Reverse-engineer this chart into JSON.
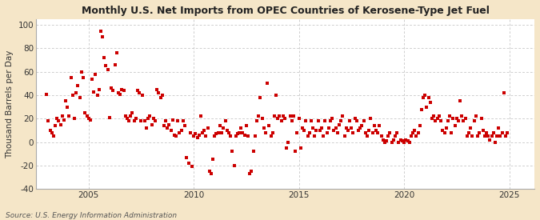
{
  "title": "Monthly U.S. Net Imports from OPEC Countries of Kerosene-Type Jet Fuel",
  "ylabel": "Thousand Barrels per Day",
  "source": "Source: U.S. Energy Information Administration",
  "fig_background_color": "#f5e6c8",
  "plot_background_color": "#ffffff",
  "dot_color": "#cc0000",
  "dot_size": 6,
  "ylim": [
    -40,
    105
  ],
  "yticks": [
    -40,
    -20,
    0,
    20,
    40,
    60,
    80,
    100
  ],
  "xlim_start": 2002.5,
  "xlim_end": 2026.2,
  "xticks": [
    2005,
    2010,
    2015,
    2020,
    2025
  ],
  "grid_color": "#bbbbbb",
  "data": [
    [
      2003.0,
      41
    ],
    [
      2003.08,
      18
    ],
    [
      2003.17,
      10
    ],
    [
      2003.25,
      8
    ],
    [
      2003.33,
      5
    ],
    [
      2003.42,
      14
    ],
    [
      2003.5,
      20
    ],
    [
      2003.58,
      18
    ],
    [
      2003.67,
      15
    ],
    [
      2003.75,
      22
    ],
    [
      2003.83,
      19
    ],
    [
      2003.92,
      35
    ],
    [
      2004.0,
      30
    ],
    [
      2004.08,
      22
    ],
    [
      2004.17,
      55
    ],
    [
      2004.25,
      40
    ],
    [
      2004.33,
      20
    ],
    [
      2004.42,
      42
    ],
    [
      2004.5,
      48
    ],
    [
      2004.58,
      38
    ],
    [
      2004.67,
      60
    ],
    [
      2004.75,
      55
    ],
    [
      2004.83,
      25
    ],
    [
      2004.92,
      22
    ],
    [
      2005.0,
      20
    ],
    [
      2005.08,
      19
    ],
    [
      2005.17,
      54
    ],
    [
      2005.25,
      43
    ],
    [
      2005.33,
      58
    ],
    [
      2005.42,
      40
    ],
    [
      2005.5,
      45
    ],
    [
      2005.58,
      95
    ],
    [
      2005.67,
      90
    ],
    [
      2005.75,
      72
    ],
    [
      2005.83,
      65
    ],
    [
      2005.92,
      62
    ],
    [
      2006.0,
      21
    ],
    [
      2006.08,
      46
    ],
    [
      2006.17,
      44
    ],
    [
      2006.25,
      66
    ],
    [
      2006.33,
      76
    ],
    [
      2006.42,
      42
    ],
    [
      2006.5,
      41
    ],
    [
      2006.58,
      45
    ],
    [
      2006.67,
      44
    ],
    [
      2006.75,
      22
    ],
    [
      2006.83,
      20
    ],
    [
      2006.92,
      18
    ],
    [
      2007.0,
      22
    ],
    [
      2007.08,
      25
    ],
    [
      2007.17,
      18
    ],
    [
      2007.25,
      20
    ],
    [
      2007.33,
      44
    ],
    [
      2007.42,
      42
    ],
    [
      2007.5,
      18
    ],
    [
      2007.58,
      40
    ],
    [
      2007.67,
      18
    ],
    [
      2007.75,
      12
    ],
    [
      2007.83,
      20
    ],
    [
      2007.92,
      22
    ],
    [
      2008.0,
      15
    ],
    [
      2008.08,
      20
    ],
    [
      2008.17,
      18
    ],
    [
      2008.25,
      45
    ],
    [
      2008.33,
      42
    ],
    [
      2008.42,
      38
    ],
    [
      2008.5,
      40
    ],
    [
      2008.58,
      14
    ],
    [
      2008.67,
      18
    ],
    [
      2008.75,
      12
    ],
    [
      2008.83,
      15
    ],
    [
      2008.92,
      10
    ],
    [
      2009.0,
      19
    ],
    [
      2009.08,
      6
    ],
    [
      2009.17,
      5
    ],
    [
      2009.25,
      18
    ],
    [
      2009.33,
      8
    ],
    [
      2009.42,
      10
    ],
    [
      2009.5,
      18
    ],
    [
      2009.58,
      14
    ],
    [
      2009.67,
      -13
    ],
    [
      2009.75,
      -18
    ],
    [
      2009.83,
      8
    ],
    [
      2009.92,
      -21
    ],
    [
      2010.0,
      5
    ],
    [
      2010.08,
      7
    ],
    [
      2010.17,
      4
    ],
    [
      2010.25,
      6
    ],
    [
      2010.33,
      22
    ],
    [
      2010.42,
      8
    ],
    [
      2010.5,
      10
    ],
    [
      2010.58,
      5
    ],
    [
      2010.67,
      12
    ],
    [
      2010.75,
      -25
    ],
    [
      2010.83,
      -27
    ],
    [
      2010.92,
      -15
    ],
    [
      2011.0,
      5
    ],
    [
      2011.08,
      7
    ],
    [
      2011.17,
      8
    ],
    [
      2011.25,
      14
    ],
    [
      2011.33,
      8
    ],
    [
      2011.42,
      12
    ],
    [
      2011.5,
      18
    ],
    [
      2011.58,
      10
    ],
    [
      2011.67,
      8
    ],
    [
      2011.75,
      5
    ],
    [
      2011.83,
      -8
    ],
    [
      2011.92,
      -20
    ],
    [
      2012.0,
      5
    ],
    [
      2012.08,
      7
    ],
    [
      2012.17,
      8
    ],
    [
      2012.25,
      12
    ],
    [
      2012.33,
      8
    ],
    [
      2012.42,
      6
    ],
    [
      2012.5,
      14
    ],
    [
      2012.58,
      5
    ],
    [
      2012.67,
      -27
    ],
    [
      2012.75,
      -25
    ],
    [
      2012.83,
      -8
    ],
    [
      2012.92,
      5
    ],
    [
      2013.0,
      18
    ],
    [
      2013.08,
      22
    ],
    [
      2013.17,
      38
    ],
    [
      2013.25,
      20
    ],
    [
      2013.33,
      12
    ],
    [
      2013.42,
      8
    ],
    [
      2013.5,
      50
    ],
    [
      2013.58,
      14
    ],
    [
      2013.67,
      5
    ],
    [
      2013.75,
      8
    ],
    [
      2013.83,
      22
    ],
    [
      2013.92,
      40
    ],
    [
      2014.0,
      20
    ],
    [
      2014.08,
      22
    ],
    [
      2014.17,
      18
    ],
    [
      2014.25,
      22
    ],
    [
      2014.33,
      20
    ],
    [
      2014.42,
      -5
    ],
    [
      2014.5,
      0
    ],
    [
      2014.58,
      22
    ],
    [
      2014.67,
      18
    ],
    [
      2014.75,
      22
    ],
    [
      2014.83,
      -8
    ],
    [
      2014.92,
      8
    ],
    [
      2015.0,
      20
    ],
    [
      2015.08,
      -5
    ],
    [
      2015.17,
      12
    ],
    [
      2015.25,
      10
    ],
    [
      2015.33,
      18
    ],
    [
      2015.42,
      5
    ],
    [
      2015.5,
      8
    ],
    [
      2015.58,
      18
    ],
    [
      2015.67,
      12
    ],
    [
      2015.75,
      5
    ],
    [
      2015.83,
      10
    ],
    [
      2015.92,
      18
    ],
    [
      2016.0,
      10
    ],
    [
      2016.08,
      12
    ],
    [
      2016.17,
      5
    ],
    [
      2016.25,
      18
    ],
    [
      2016.33,
      8
    ],
    [
      2016.42,
      12
    ],
    [
      2016.5,
      18
    ],
    [
      2016.58,
      20
    ],
    [
      2016.67,
      10
    ],
    [
      2016.75,
      12
    ],
    [
      2016.83,
      8
    ],
    [
      2016.92,
      15
    ],
    [
      2017.0,
      18
    ],
    [
      2017.08,
      22
    ],
    [
      2017.17,
      5
    ],
    [
      2017.25,
      12
    ],
    [
      2017.33,
      10
    ],
    [
      2017.42,
      18
    ],
    [
      2017.5,
      12
    ],
    [
      2017.58,
      8
    ],
    [
      2017.67,
      20
    ],
    [
      2017.75,
      18
    ],
    [
      2017.83,
      10
    ],
    [
      2017.92,
      12
    ],
    [
      2018.0,
      14
    ],
    [
      2018.08,
      18
    ],
    [
      2018.17,
      8
    ],
    [
      2018.25,
      5
    ],
    [
      2018.33,
      10
    ],
    [
      2018.42,
      20
    ],
    [
      2018.5,
      8
    ],
    [
      2018.58,
      14
    ],
    [
      2018.67,
      10
    ],
    [
      2018.75,
      8
    ],
    [
      2018.83,
      14
    ],
    [
      2018.92,
      5
    ],
    [
      2019.0,
      2
    ],
    [
      2019.08,
      0
    ],
    [
      2019.17,
      1
    ],
    [
      2019.25,
      5
    ],
    [
      2019.33,
      8
    ],
    [
      2019.42,
      0
    ],
    [
      2019.5,
      2
    ],
    [
      2019.58,
      5
    ],
    [
      2019.67,
      8
    ],
    [
      2019.75,
      0
    ],
    [
      2019.83,
      2
    ],
    [
      2019.92,
      1
    ],
    [
      2020.0,
      0
    ],
    [
      2020.08,
      2
    ],
    [
      2020.17,
      1
    ],
    [
      2020.25,
      0
    ],
    [
      2020.33,
      5
    ],
    [
      2020.42,
      8
    ],
    [
      2020.5,
      10
    ],
    [
      2020.58,
      5
    ],
    [
      2020.67,
      8
    ],
    [
      2020.75,
      14
    ],
    [
      2020.83,
      28
    ],
    [
      2020.92,
      38
    ],
    [
      2021.0,
      40
    ],
    [
      2021.08,
      30
    ],
    [
      2021.17,
      38
    ],
    [
      2021.25,
      34
    ],
    [
      2021.33,
      20
    ],
    [
      2021.42,
      22
    ],
    [
      2021.5,
      18
    ],
    [
      2021.58,
      20
    ],
    [
      2021.67,
      22
    ],
    [
      2021.75,
      18
    ],
    [
      2021.83,
      10
    ],
    [
      2021.92,
      8
    ],
    [
      2022.0,
      12
    ],
    [
      2022.08,
      18
    ],
    [
      2022.17,
      22
    ],
    [
      2022.25,
      8
    ],
    [
      2022.33,
      20
    ],
    [
      2022.42,
      14
    ],
    [
      2022.5,
      20
    ],
    [
      2022.58,
      18
    ],
    [
      2022.67,
      35
    ],
    [
      2022.75,
      22
    ],
    [
      2022.83,
      18
    ],
    [
      2022.92,
      20
    ],
    [
      2023.0,
      5
    ],
    [
      2023.08,
      8
    ],
    [
      2023.17,
      12
    ],
    [
      2023.25,
      5
    ],
    [
      2023.33,
      18
    ],
    [
      2023.42,
      22
    ],
    [
      2023.5,
      5
    ],
    [
      2023.58,
      8
    ],
    [
      2023.67,
      20
    ],
    [
      2023.75,
      10
    ],
    [
      2023.83,
      5
    ],
    [
      2023.92,
      8
    ],
    [
      2024.0,
      5
    ],
    [
      2024.08,
      2
    ],
    [
      2024.17,
      5
    ],
    [
      2024.25,
      8
    ],
    [
      2024.33,
      0
    ],
    [
      2024.42,
      5
    ],
    [
      2024.5,
      12
    ],
    [
      2024.58,
      5
    ],
    [
      2024.67,
      8
    ],
    [
      2024.75,
      42
    ],
    [
      2024.83,
      5
    ],
    [
      2024.92,
      8
    ]
  ]
}
